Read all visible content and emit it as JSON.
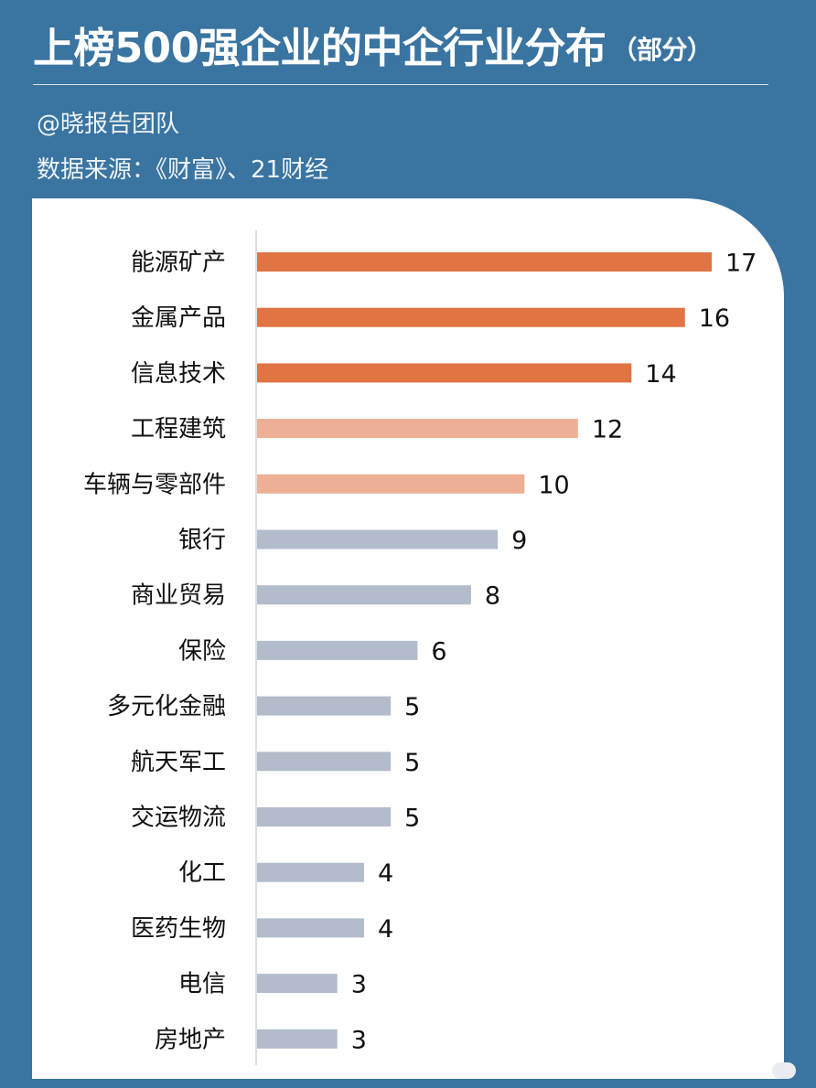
{
  "header": {
    "title": "上榜500强企业的中企行业分布",
    "title_suffix": "（部分）",
    "author": "@晓报告团队",
    "source": "数据来源：《财富》、21财经"
  },
  "chart_data": {
    "type": "bar",
    "orientation": "horizontal",
    "title": "上榜500强企业的中企行业分布（部分）",
    "categories": [
      "能源矿产",
      "金属产品",
      "信息技术",
      "工程建筑",
      "车辆与零部件",
      "银行",
      "商业贸易",
      "保险",
      "多元化金融",
      "航天军工",
      "交运物流",
      "化工",
      "医药生物",
      "电信",
      "房地产"
    ],
    "values": [
      17,
      16,
      14,
      12,
      10,
      9,
      8,
      6,
      5,
      5,
      5,
      4,
      4,
      3,
      3
    ],
    "colors": [
      "#e07442",
      "#e07442",
      "#e07442",
      "#eeb094",
      "#eeb094",
      "#b3bccb",
      "#b3bccb",
      "#b3bccb",
      "#b3bccb",
      "#b3bccb",
      "#b3bccb",
      "#b3bccb",
      "#b3bccb",
      "#b3bccb",
      "#b3bccb"
    ],
    "xlim": [
      0,
      17
    ],
    "data_labels": true,
    "grid": false,
    "legend": "none"
  },
  "colors": {
    "background": "#3a74a1",
    "panel": "#ffffff",
    "axis_line": "#cfd6dc"
  }
}
